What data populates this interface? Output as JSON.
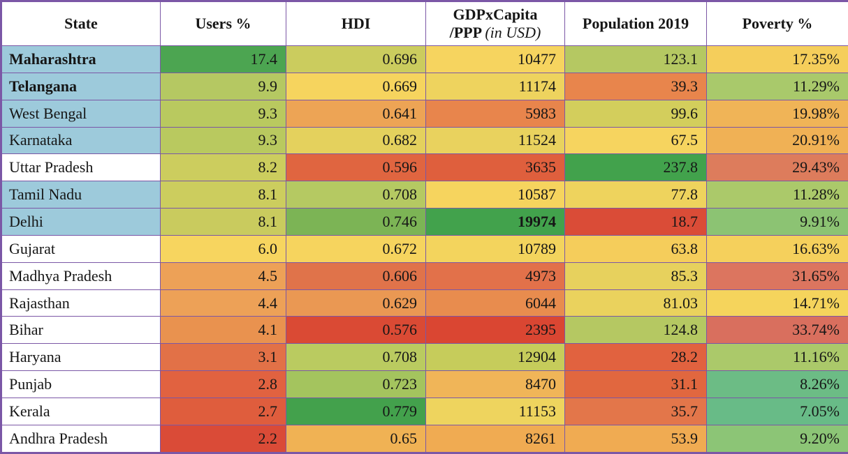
{
  "colors": {
    "border": "#7b57a6",
    "state_highlight_blue": "#9dcadb",
    "header_bg": "#ffffff",
    "text": "#161616",
    "scale_green": "#42a24c",
    "scale_yellow": "#f6d45f",
    "scale_red": "#da4a34"
  },
  "header": {
    "state": "State",
    "users": "Users %",
    "hdi": "HDI",
    "gdp_line1": "GDPxCapita",
    "gdp_line2_bold": "/PPP",
    "gdp_line2_italic": "(in USD)",
    "population": "Population 2019",
    "poverty": "Poverty %"
  },
  "chart_data": {
    "type": "table",
    "title": "Indian states: internet users share vs HDI, GDP per capita, population and poverty",
    "columns": [
      "State",
      "Users %",
      "HDI",
      "GDPxCapita /PPP (in USD)",
      "Population 2019",
      "Poverty %"
    ],
    "rows": [
      {
        "state": {
          "text": "Maharashtra",
          "bold": true,
          "bg": "#9dcadb"
        },
        "cells": [
          {
            "text": "17.4",
            "bg": "#4ca551"
          },
          {
            "text": "0.696",
            "bg": "#cbcc5e"
          },
          {
            "text": "10477",
            "bg": "#f6d45f"
          },
          {
            "text": "123.1",
            "bg": "#b5c862"
          },
          {
            "text": "17.35%",
            "bg": "#f5ce5b"
          }
        ]
      },
      {
        "state": {
          "text": "Telangana",
          "bold": true,
          "bg": "#9dcadb"
        },
        "cells": [
          {
            "text": "9.9",
            "bg": "#b5c862"
          },
          {
            "text": "0.669",
            "bg": "#f6d45e"
          },
          {
            "text": "11174",
            "bg": "#eed35e"
          },
          {
            "text": "39.3",
            "bg": "#e8854c"
          },
          {
            "text": "11.29%",
            "bg": "#a9c96b"
          }
        ]
      },
      {
        "state": {
          "text": "West Bengal",
          "bold": false,
          "bg": "#9dcadb"
        },
        "cells": [
          {
            "text": "9.3",
            "bg": "#b9c95f"
          },
          {
            "text": "0.641",
            "bg": "#eda455"
          },
          {
            "text": "5983",
            "bg": "#e8854c"
          },
          {
            "text": "99.6",
            "bg": "#d3ce5c"
          },
          {
            "text": "19.98%",
            "bg": "#f0b457"
          }
        ]
      },
      {
        "state": {
          "text": "Karnataka",
          "bold": false,
          "bg": "#9dcadb"
        },
        "cells": [
          {
            "text": "9.3",
            "bg": "#b9c95f"
          },
          {
            "text": "0.682",
            "bg": "#e4d15d"
          },
          {
            "text": "11524",
            "bg": "#e9d25e"
          },
          {
            "text": "67.5",
            "bg": "#f6d45f"
          },
          {
            "text": "20.91%",
            "bg": "#f0b155"
          }
        ]
      },
      {
        "state": {
          "text": "Uttar Pradesh",
          "bold": false,
          "bg": "#ffffff"
        },
        "cells": [
          {
            "text": "8.2",
            "bg": "#cccd5e"
          },
          {
            "text": "0.596",
            "bg": "#e06540"
          },
          {
            "text": "3635",
            "bg": "#df5f3d"
          },
          {
            "text": "237.8",
            "bg": "#42a24c"
          },
          {
            "text": "29.43%",
            "bg": "#dd7c5c"
          }
        ]
      },
      {
        "state": {
          "text": "Tamil Nadu",
          "bold": false,
          "bg": "#9dcadb"
        },
        "cells": [
          {
            "text": "8.1",
            "bg": "#cccd5e"
          },
          {
            "text": "0.708",
            "bg": "#b5c962"
          },
          {
            "text": "10587",
            "bg": "#f6d45e"
          },
          {
            "text": "77.8",
            "bg": "#eed35d"
          },
          {
            "text": "11.28%",
            "bg": "#abc96a"
          }
        ]
      },
      {
        "state": {
          "text": "Delhi",
          "bold": false,
          "bg": "#9dcadb"
        },
        "cells": [
          {
            "text": "8.1",
            "bg": "#c9cb5e"
          },
          {
            "text": "0.746",
            "bg": "#7cb455"
          },
          {
            "text": "19974",
            "bg": "#42a24c",
            "bold": true
          },
          {
            "text": "18.7",
            "bg": "#da4c37"
          },
          {
            "text": "9.91%",
            "bg": "#8cc373"
          }
        ]
      },
      {
        "state": {
          "text": "Gujarat",
          "bold": false,
          "bg": "#ffffff"
        },
        "cells": [
          {
            "text": "6.0",
            "bg": "#f7d55f"
          },
          {
            "text": "0.672",
            "bg": "#f6d45e"
          },
          {
            "text": "10789",
            "bg": "#f3d45d"
          },
          {
            "text": "63.8",
            "bg": "#f5cd5b"
          },
          {
            "text": "16.63%",
            "bg": "#f5d05c"
          }
        ]
      },
      {
        "state": {
          "text": "Madhya Pradesh",
          "bold": false,
          "bg": "#ffffff"
        },
        "cells": [
          {
            "text": "4.5",
            "bg": "#eda157"
          },
          {
            "text": "0.606",
            "bg": "#e0734a"
          },
          {
            "text": "4973",
            "bg": "#e2714a"
          },
          {
            "text": "85.3",
            "bg": "#e7d15d"
          },
          {
            "text": "31.65%",
            "bg": "#dc755f"
          }
        ]
      },
      {
        "state": {
          "text": "Rajasthan",
          "bold": false,
          "bg": "#ffffff"
        },
        "cells": [
          {
            "text": "4.4",
            "bg": "#eda157"
          },
          {
            "text": "0.629",
            "bg": "#ea9853"
          },
          {
            "text": "6044",
            "bg": "#e88c4e"
          },
          {
            "text": "81.03",
            "bg": "#ead25d"
          },
          {
            "text": "14.71%",
            "bg": "#f5d45c"
          }
        ]
      },
      {
        "state": {
          "text": "Bihar",
          "bold": false,
          "bg": "#ffffff"
        },
        "cells": [
          {
            "text": "4.1",
            "bg": "#e9924f"
          },
          {
            "text": "0.576",
            "bg": "#da4a34"
          },
          {
            "text": "2395",
            "bg": "#da4632"
          },
          {
            "text": "124.8",
            "bg": "#b5c862"
          },
          {
            "text": "33.74%",
            "bg": "#d96f5e"
          }
        ]
      },
      {
        "state": {
          "text": "Haryana",
          "bold": false,
          "bg": "#ffffff"
        },
        "cells": [
          {
            "text": "3.1",
            "bg": "#e27147"
          },
          {
            "text": "0.708",
            "bg": "#bacb60"
          },
          {
            "text": "12904",
            "bg": "#c6cc5b"
          },
          {
            "text": "28.2",
            "bg": "#e1623f"
          },
          {
            "text": "11.16%",
            "bg": "#abc96a"
          }
        ]
      },
      {
        "state": {
          "text": "Punjab",
          "bold": false,
          "bg": "#ffffff"
        },
        "cells": [
          {
            "text": "2.8",
            "bg": "#e16240"
          },
          {
            "text": "0.723",
            "bg": "#a4c45e"
          },
          {
            "text": "8470",
            "bg": "#f0b558"
          },
          {
            "text": "31.1",
            "bg": "#e1673f"
          },
          {
            "text": "8.26%",
            "bg": "#6cbc85"
          }
        ]
      },
      {
        "state": {
          "text": "Kerala",
          "bold": false,
          "bg": "#ffffff"
        },
        "cells": [
          {
            "text": "2.7",
            "bg": "#df5d3d"
          },
          {
            "text": "0.779",
            "bg": "#43a14c"
          },
          {
            "text": "11153",
            "bg": "#eed45e"
          },
          {
            "text": "35.7",
            "bg": "#e3764a"
          },
          {
            "text": "7.05%",
            "bg": "#68bb87"
          }
        ]
      },
      {
        "state": {
          "text": "Andhra Pradesh",
          "bold": false,
          "bg": "#ffffff"
        },
        "cells": [
          {
            "text": "2.2",
            "bg": "#da4b37"
          },
          {
            "text": "0.65",
            "bg": "#f0b254"
          },
          {
            "text": "8261",
            "bg": "#f0ab52"
          },
          {
            "text": "53.9",
            "bg": "#f0ab52"
          },
          {
            "text": "9.20%",
            "bg": "#8cc576"
          }
        ]
      }
    ]
  }
}
